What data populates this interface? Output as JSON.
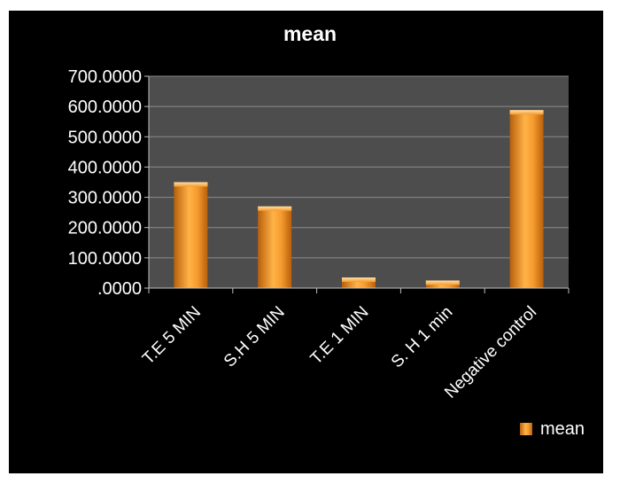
{
  "chart_data": {
    "type": "bar",
    "title": "mean",
    "categories": [
      "T.E 5 MIN",
      "S.H 5 MIN",
      "T.E 1 MIN",
      "S. H 1 min",
      "Negative control"
    ],
    "series": [
      {
        "name": "mean",
        "values": [
          350,
          270,
          35,
          25,
          588
        ]
      }
    ],
    "ylim": [
      0,
      700
    ],
    "yticks": [
      ".0000",
      "100.0000",
      "200.0000",
      "300.0000",
      "400.0000",
      "500.0000",
      "600.0000",
      "700.0000"
    ],
    "grid": true,
    "legend": "right",
    "colors": {
      "bar": "#f59a2e",
      "bar_dark": "#b85f0c",
      "bar_light": "#ffd08a",
      "plot_bg": "#4d4d4d",
      "background": "#000000"
    }
  }
}
